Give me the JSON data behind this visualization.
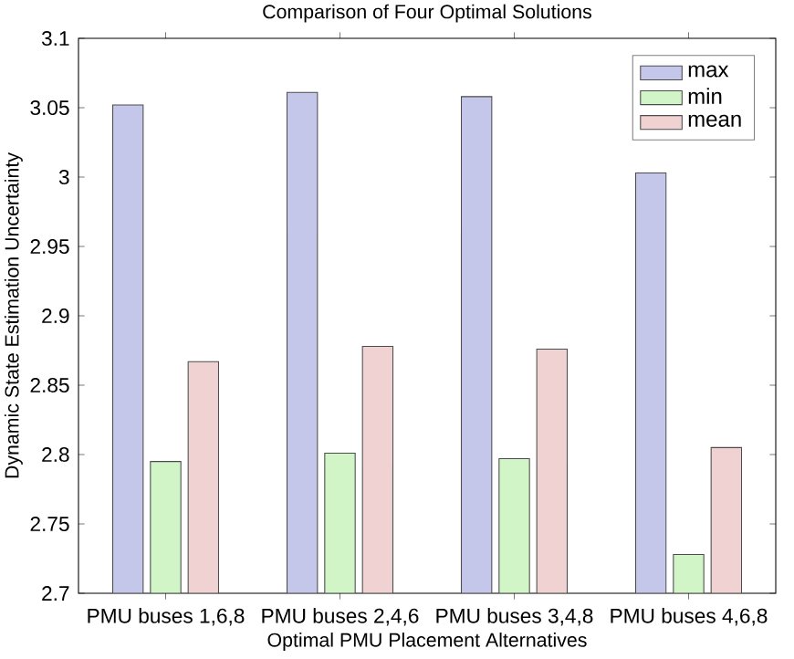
{
  "chart_data": {
    "type": "bar",
    "title": "Comparison of Four Optimal Solutions",
    "xlabel": "Optimal PMU Placement Alternatives",
    "ylabel": "Dynamic State Estimation Uncertainty",
    "categories": [
      "PMU buses 1,6,8",
      "PMU buses 2,4,6",
      "PMU buses 3,4,8",
      "PMU buses 4,6,8"
    ],
    "series": [
      {
        "name": "max",
        "color": "#c4c6ea",
        "values": [
          3.052,
          3.061,
          3.058,
          3.003
        ]
      },
      {
        "name": "min",
        "color": "#d2f5c8",
        "values": [
          2.795,
          2.801,
          2.797,
          2.728
        ]
      },
      {
        "name": "mean",
        "color": "#f0d2d2",
        "values": [
          2.867,
          2.878,
          2.876,
          2.805
        ]
      }
    ],
    "ylim": [
      2.7,
      3.1
    ],
    "yticks": [
      2.7,
      2.75,
      2.8,
      2.85,
      2.9,
      2.95,
      3,
      3.05,
      3.1
    ],
    "legend": "top right",
    "grid": false
  }
}
